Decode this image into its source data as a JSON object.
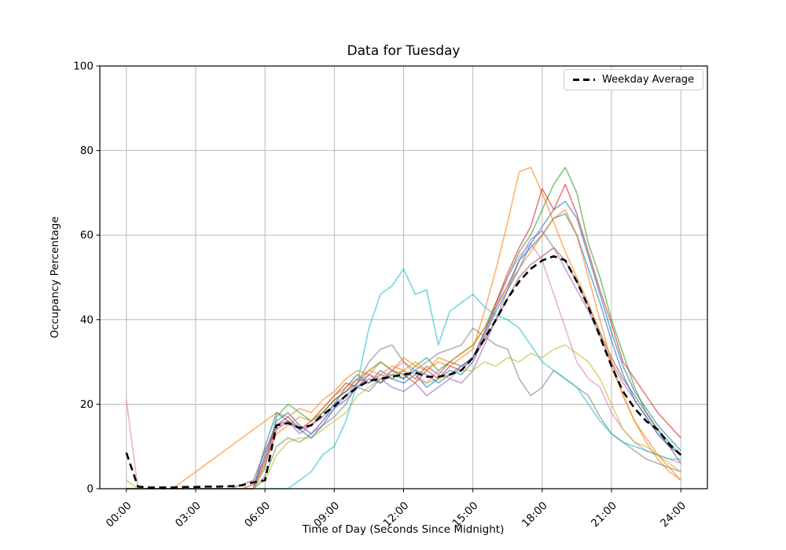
{
  "chart_data": {
    "type": "line",
    "title": "Data for Tuesday",
    "xlabel": "Time of Day (Seconds Since Midnight)",
    "ylabel": "Occupancy Percentage",
    "grid": true,
    "grid_color": "#b0b0b0",
    "xlim_hours": [
      -1.15,
      25.15
    ],
    "ylim": [
      0,
      100
    ],
    "x_ticks_hours": [
      0,
      3,
      6,
      9,
      12,
      15,
      18,
      21,
      24
    ],
    "x_tick_labels": [
      "00:00",
      "03:00",
      "06:00",
      "09:00",
      "12:00",
      "15:00",
      "18:00",
      "21:00",
      "24:00"
    ],
    "y_ticks": [
      0,
      20,
      40,
      60,
      80,
      100
    ],
    "y_tick_labels": [
      "0",
      "20",
      "40",
      "60",
      "80",
      "100"
    ],
    "x_step_hours": 0.5,
    "series_opacity": 0.6,
    "series_line_width": 1.6,
    "legend": {
      "label": "Weekday Average",
      "position": "upper right"
    },
    "series": [
      {
        "name": "line-1",
        "color": "#1f77b4",
        "values": [
          0,
          0,
          0,
          0,
          0,
          0,
          0,
          0,
          0,
          0,
          0,
          0,
          8,
          16,
          18,
          15,
          13,
          16,
          20,
          24,
          27,
          25,
          28,
          26,
          25,
          27,
          24,
          26,
          28,
          27,
          30,
          36,
          42,
          47,
          52,
          58,
          62,
          66,
          68,
          64,
          55,
          46,
          37,
          29,
          23,
          19,
          15,
          12,
          9
        ]
      },
      {
        "name": "line-2",
        "color": "#ff7f0e",
        "values": [
          0,
          0,
          0,
          0,
          0,
          2,
          4,
          6,
          8,
          10,
          12,
          14,
          16,
          18,
          17,
          19,
          18,
          21,
          23,
          26,
          28,
          27,
          30,
          28,
          31,
          29,
          28,
          30,
          29,
          31,
          33,
          42,
          52,
          63,
          75,
          76,
          70,
          63,
          56,
          50,
          44,
          37,
          29,
          22,
          16,
          11,
          7,
          4,
          2
        ]
      },
      {
        "name": "line-3",
        "color": "#2ca02c",
        "values": [
          0,
          0,
          0,
          0,
          0,
          0,
          0,
          0,
          0,
          0,
          0,
          0,
          5,
          17,
          20,
          18,
          16,
          18,
          21,
          23,
          25,
          28,
          30,
          28,
          26,
          29,
          31,
          28,
          30,
          32,
          34,
          38,
          44,
          50,
          56,
          60,
          66,
          72,
          76,
          70,
          58,
          50,
          40,
          32,
          24,
          18,
          14,
          11,
          8
        ]
      },
      {
        "name": "line-4",
        "color": "#d62728",
        "values": [
          0,
          0,
          0,
          0,
          0,
          0,
          0,
          0,
          0,
          0,
          0,
          1,
          7,
          15,
          17,
          14,
          16,
          19,
          22,
          25,
          24,
          27,
          25,
          28,
          27,
          25,
          28,
          26,
          29,
          28,
          31,
          37,
          44,
          51,
          57,
          62,
          71,
          66,
          72,
          65,
          56,
          47,
          39,
          30,
          26,
          22,
          18,
          15,
          12
        ]
      },
      {
        "name": "line-5",
        "color": "#9467bd",
        "values": [
          0,
          0,
          0,
          0,
          0,
          0,
          0,
          0,
          0,
          0,
          0,
          0,
          6,
          14,
          16,
          13,
          15,
          17,
          20,
          22,
          24,
          23,
          26,
          24,
          23,
          25,
          22,
          24,
          26,
          25,
          28,
          34,
          40,
          47,
          54,
          59,
          61,
          57,
          52,
          47,
          42,
          36,
          30,
          25,
          21,
          17,
          13,
          10,
          8
        ]
      },
      {
        "name": "line-6",
        "color": "#8c564b",
        "values": [
          0,
          0,
          0,
          0,
          0,
          0,
          0,
          0,
          0,
          0,
          1,
          2,
          9,
          15,
          16,
          14,
          15,
          18,
          21,
          23,
          26,
          25,
          27,
          26,
          28,
          26,
          29,
          27,
          30,
          29,
          31,
          35,
          40,
          45,
          50,
          53,
          55,
          57,
          54,
          49,
          43,
          37,
          31,
          26,
          22,
          18,
          14,
          10,
          6
        ]
      },
      {
        "name": "line-7",
        "color": "#e377c2",
        "values": [
          21,
          0,
          0,
          0,
          0,
          0,
          0,
          0,
          0,
          0,
          0,
          0,
          7,
          14,
          16,
          15,
          13,
          16,
          19,
          22,
          25,
          27,
          26,
          28,
          30,
          27,
          25,
          28,
          26,
          29,
          30,
          36,
          43,
          50,
          55,
          58,
          54,
          46,
          38,
          30,
          26,
          24,
          18,
          14,
          11,
          9,
          8,
          7,
          6
        ]
      },
      {
        "name": "line-8",
        "color": "#7f7f7f",
        "values": [
          0,
          0,
          0,
          0,
          0,
          0,
          0,
          0,
          0,
          0,
          0,
          0,
          3,
          10,
          12,
          11,
          13,
          15,
          17,
          20,
          25,
          30,
          33,
          34,
          30,
          28,
          30,
          32,
          33,
          34,
          38,
          36,
          34,
          33,
          26,
          22,
          24,
          28,
          26,
          24,
          22,
          17,
          13,
          11,
          9,
          7,
          6,
          5,
          4
        ]
      },
      {
        "name": "line-9",
        "color": "#bcbd22",
        "values": [
          2,
          0,
          0,
          0,
          0,
          0,
          0,
          0,
          0,
          0,
          0,
          0,
          2,
          8,
          11,
          12,
          12,
          14,
          16,
          18,
          22,
          24,
          26,
          27,
          28,
          26,
          25,
          26,
          27,
          28,
          28,
          30,
          29,
          31,
          30,
          32,
          31,
          33,
          34,
          32,
          30,
          26,
          20,
          14,
          11,
          10,
          8,
          6,
          4
        ]
      },
      {
        "name": "line-10",
        "color": "#17becf",
        "values": [
          0,
          0,
          0,
          0,
          0,
          0,
          0,
          0,
          0,
          0,
          0,
          0,
          0,
          0,
          0,
          2,
          4,
          8,
          10,
          16,
          25,
          38,
          46,
          48,
          52,
          46,
          47,
          34,
          42,
          44,
          46,
          43,
          41,
          40,
          38,
          34,
          30,
          28,
          26,
          24,
          20,
          16,
          13,
          11,
          10,
          9,
          8,
          7,
          7
        ]
      },
      {
        "name": "line-11",
        "color": "#1f77b4",
        "values": [
          0,
          0,
          0,
          0,
          0,
          0,
          0,
          0,
          0,
          0,
          0,
          0,
          10,
          18,
          16,
          14,
          12,
          15,
          19,
          21,
          24,
          26,
          25,
          27,
          26,
          28,
          27,
          25,
          27,
          29,
          31,
          37,
          43,
          48,
          54,
          57,
          60,
          64,
          65,
          60,
          52,
          44,
          35,
          27,
          21,
          17,
          13,
          10,
          8
        ]
      },
      {
        "name": "line-12",
        "color": "#ff7f0e",
        "values": [
          0,
          0,
          0,
          0,
          0,
          0,
          0,
          0,
          0,
          0,
          0,
          0,
          6,
          13,
          15,
          17,
          16,
          19,
          22,
          24,
          26,
          28,
          27,
          29,
          28,
          30,
          28,
          31,
          30,
          32,
          34,
          38,
          43,
          48,
          52,
          56,
          60,
          64,
          66,
          60,
          50,
          40,
          30,
          22,
          16,
          12,
          8,
          5,
          2
        ]
      }
    ],
    "average": {
      "name": "Weekday Average",
      "color": "#000000",
      "line_width": 2.6,
      "dash": [
        9,
        5.5
      ],
      "values": [
        8.5,
        0.5,
        0.3,
        0.3,
        0.3,
        0.4,
        0.4,
        0.5,
        0.5,
        0.6,
        0.8,
        1.5,
        2,
        15,
        15.5,
        14.4,
        15,
        17.5,
        19.5,
        22,
        24,
        25.5,
        26,
        26.5,
        27,
        27.5,
        26.5,
        26.5,
        27,
        28,
        31,
        35.5,
        40,
        45,
        49,
        52,
        54,
        55,
        54,
        49,
        43,
        36,
        29,
        23,
        19,
        16,
        14,
        10.5,
        8
      ]
    }
  }
}
